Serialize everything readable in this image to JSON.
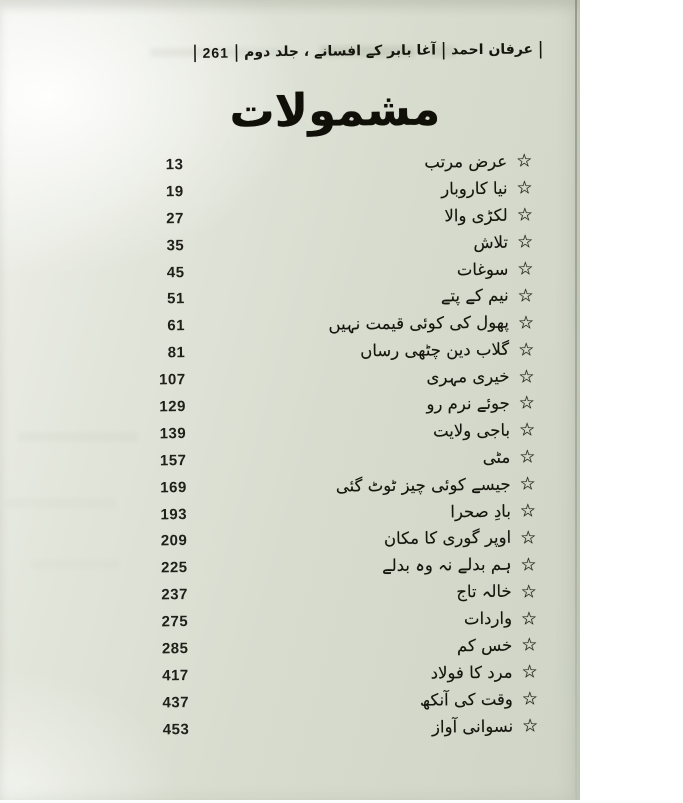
{
  "header": {
    "pipe": "|",
    "page_number": "261",
    "book_title": "آغا بابر کے افسانے ، جلد دوم",
    "author": "عرفان احمد"
  },
  "title": "مشمولات",
  "bullet": {
    "icon": "star-outline",
    "glyph": "☆"
  },
  "colors": {
    "paper": "#d8dccf",
    "scanner_margin": "#ffffff",
    "ink": "#15150e",
    "page_edge": "#5f6455"
  },
  "entries": [
    {
      "title": "عرض مرتب",
      "page": "13"
    },
    {
      "title": "نیا کاروبار",
      "page": "19"
    },
    {
      "title": "لکڑی والا",
      "page": "27"
    },
    {
      "title": "تلاش",
      "page": "35"
    },
    {
      "title": "سوغات",
      "page": "45"
    },
    {
      "title": "نیم کے پتے",
      "page": "51"
    },
    {
      "title": "پھول کی کوئی قیمت نہیں",
      "page": "61"
    },
    {
      "title": "گلاب دین چٹھی رساں",
      "page": "81"
    },
    {
      "title": "خیری مہری",
      "page": "107"
    },
    {
      "title": "جوئے نرم رو",
      "page": "129"
    },
    {
      "title": "باجی ولایت",
      "page": "139"
    },
    {
      "title": "مٹی",
      "page": "157"
    },
    {
      "title": "جیسے کوئی چیز ٹوٹ گئی",
      "page": "169"
    },
    {
      "title": "بادِ صحرا",
      "page": "193"
    },
    {
      "title": "اوپر گوری کا مکان",
      "page": "209"
    },
    {
      "title": "ہم بدلے نہ وہ بدلے",
      "page": "225"
    },
    {
      "title": "خالہ تاج",
      "page": "237"
    },
    {
      "title": "واردات",
      "page": "275"
    },
    {
      "title": "خس کم",
      "page": "285"
    },
    {
      "title": "مرد کا فولاد",
      "page": "417"
    },
    {
      "title": "وقت کی آنکھ",
      "page": "437"
    },
    {
      "title": "نسوانی آواز",
      "page": "453"
    }
  ]
}
